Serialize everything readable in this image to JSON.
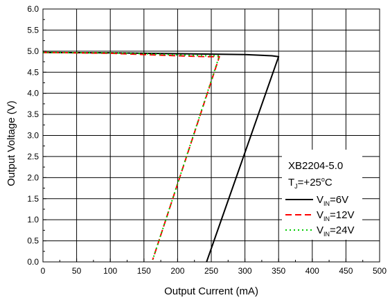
{
  "chart_data": {
    "type": "line",
    "xlabel": "Output Current (mA)",
    "ylabel": "Output Voltage (V)",
    "xlim": [
      0,
      500
    ],
    "ylim": [
      0.0,
      6.0
    ],
    "xticks": [
      0,
      50,
      100,
      150,
      200,
      250,
      300,
      350,
      400,
      450,
      500
    ],
    "yticks": [
      "0.0",
      "0.5",
      "1.0",
      "1.5",
      "2.0",
      "2.5",
      "3.0",
      "3.5",
      "4.0",
      "4.5",
      "5.0",
      "5.5",
      "6.0"
    ],
    "grid": true,
    "legend_placement": "bottom-right",
    "legend_title": "XB2204-5.0",
    "legend_condition": {
      "main": "T",
      "sub": "J",
      "value": "=+25",
      "sup": "o",
      "unit": "C"
    },
    "series": [
      {
        "name": "VIN=6V",
        "label_main": "V",
        "label_sub": "IN",
        "label_value": "=6V",
        "color": "#000000",
        "dash": "solid",
        "x": [
          0,
          100,
          200,
          300,
          340,
          350,
          243
        ],
        "y": [
          4.97,
          4.96,
          4.94,
          4.92,
          4.89,
          4.87,
          0.0
        ]
      },
      {
        "name": "VIN=12V",
        "label_main": "V",
        "label_sub": "IN",
        "label_value": "=12V",
        "color": "#ff0000",
        "dash": "dashed",
        "x": [
          0,
          100,
          150,
          200,
          240,
          262,
          163
        ],
        "y": [
          4.97,
          4.95,
          4.92,
          4.89,
          4.87,
          4.87,
          0.05
        ]
      },
      {
        "name": "VIN=24V",
        "label_main": "V",
        "label_sub": "IN",
        "label_value": "=24V",
        "color": "#00cc00",
        "dash": "dotted",
        "x": [
          0,
          100,
          150,
          200,
          240,
          262,
          163
        ],
        "y": [
          4.97,
          4.96,
          4.94,
          4.91,
          4.89,
          4.89,
          0.05
        ]
      }
    ]
  }
}
